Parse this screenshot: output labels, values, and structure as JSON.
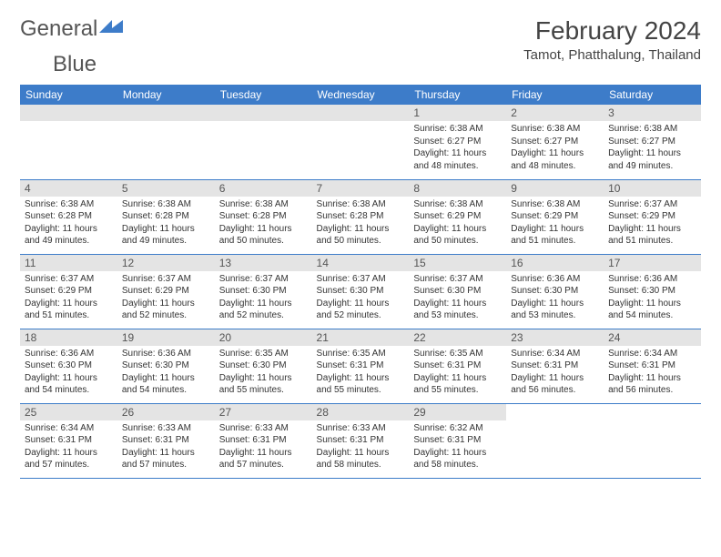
{
  "logo": {
    "text1": "General",
    "text2": "Blue"
  },
  "title": "February 2024",
  "location": "Tamot, Phatthalung, Thailand",
  "colors": {
    "header_bg": "#3d7cc9",
    "header_text": "#ffffff",
    "daynum_bg": "#e4e4e4",
    "border": "#3d7cc9",
    "page_bg": "#ffffff"
  },
  "weekdays": [
    "Sunday",
    "Monday",
    "Tuesday",
    "Wednesday",
    "Thursday",
    "Friday",
    "Saturday"
  ],
  "weeks": [
    [
      null,
      null,
      null,
      null,
      {
        "n": "1",
        "sr": "6:38 AM",
        "ss": "6:27 PM",
        "dl": "11 hours and 48 minutes."
      },
      {
        "n": "2",
        "sr": "6:38 AM",
        "ss": "6:27 PM",
        "dl": "11 hours and 48 minutes."
      },
      {
        "n": "3",
        "sr": "6:38 AM",
        "ss": "6:27 PM",
        "dl": "11 hours and 49 minutes."
      }
    ],
    [
      {
        "n": "4",
        "sr": "6:38 AM",
        "ss": "6:28 PM",
        "dl": "11 hours and 49 minutes."
      },
      {
        "n": "5",
        "sr": "6:38 AM",
        "ss": "6:28 PM",
        "dl": "11 hours and 49 minutes."
      },
      {
        "n": "6",
        "sr": "6:38 AM",
        "ss": "6:28 PM",
        "dl": "11 hours and 50 minutes."
      },
      {
        "n": "7",
        "sr": "6:38 AM",
        "ss": "6:28 PM",
        "dl": "11 hours and 50 minutes."
      },
      {
        "n": "8",
        "sr": "6:38 AM",
        "ss": "6:29 PM",
        "dl": "11 hours and 50 minutes."
      },
      {
        "n": "9",
        "sr": "6:38 AM",
        "ss": "6:29 PM",
        "dl": "11 hours and 51 minutes."
      },
      {
        "n": "10",
        "sr": "6:37 AM",
        "ss": "6:29 PM",
        "dl": "11 hours and 51 minutes."
      }
    ],
    [
      {
        "n": "11",
        "sr": "6:37 AM",
        "ss": "6:29 PM",
        "dl": "11 hours and 51 minutes."
      },
      {
        "n": "12",
        "sr": "6:37 AM",
        "ss": "6:29 PM",
        "dl": "11 hours and 52 minutes."
      },
      {
        "n": "13",
        "sr": "6:37 AM",
        "ss": "6:30 PM",
        "dl": "11 hours and 52 minutes."
      },
      {
        "n": "14",
        "sr": "6:37 AM",
        "ss": "6:30 PM",
        "dl": "11 hours and 52 minutes."
      },
      {
        "n": "15",
        "sr": "6:37 AM",
        "ss": "6:30 PM",
        "dl": "11 hours and 53 minutes."
      },
      {
        "n": "16",
        "sr": "6:36 AM",
        "ss": "6:30 PM",
        "dl": "11 hours and 53 minutes."
      },
      {
        "n": "17",
        "sr": "6:36 AM",
        "ss": "6:30 PM",
        "dl": "11 hours and 54 minutes."
      }
    ],
    [
      {
        "n": "18",
        "sr": "6:36 AM",
        "ss": "6:30 PM",
        "dl": "11 hours and 54 minutes."
      },
      {
        "n": "19",
        "sr": "6:36 AM",
        "ss": "6:30 PM",
        "dl": "11 hours and 54 minutes."
      },
      {
        "n": "20",
        "sr": "6:35 AM",
        "ss": "6:30 PM",
        "dl": "11 hours and 55 minutes."
      },
      {
        "n": "21",
        "sr": "6:35 AM",
        "ss": "6:31 PM",
        "dl": "11 hours and 55 minutes."
      },
      {
        "n": "22",
        "sr": "6:35 AM",
        "ss": "6:31 PM",
        "dl": "11 hours and 55 minutes."
      },
      {
        "n": "23",
        "sr": "6:34 AM",
        "ss": "6:31 PM",
        "dl": "11 hours and 56 minutes."
      },
      {
        "n": "24",
        "sr": "6:34 AM",
        "ss": "6:31 PM",
        "dl": "11 hours and 56 minutes."
      }
    ],
    [
      {
        "n": "25",
        "sr": "6:34 AM",
        "ss": "6:31 PM",
        "dl": "11 hours and 57 minutes."
      },
      {
        "n": "26",
        "sr": "6:33 AM",
        "ss": "6:31 PM",
        "dl": "11 hours and 57 minutes."
      },
      {
        "n": "27",
        "sr": "6:33 AM",
        "ss": "6:31 PM",
        "dl": "11 hours and 57 minutes."
      },
      {
        "n": "28",
        "sr": "6:33 AM",
        "ss": "6:31 PM",
        "dl": "11 hours and 58 minutes."
      },
      {
        "n": "29",
        "sr": "6:32 AM",
        "ss": "6:31 PM",
        "dl": "11 hours and 58 minutes."
      },
      null,
      null
    ]
  ],
  "labels": {
    "sunrise": "Sunrise: ",
    "sunset": "Sunset: ",
    "daylight": "Daylight: "
  }
}
